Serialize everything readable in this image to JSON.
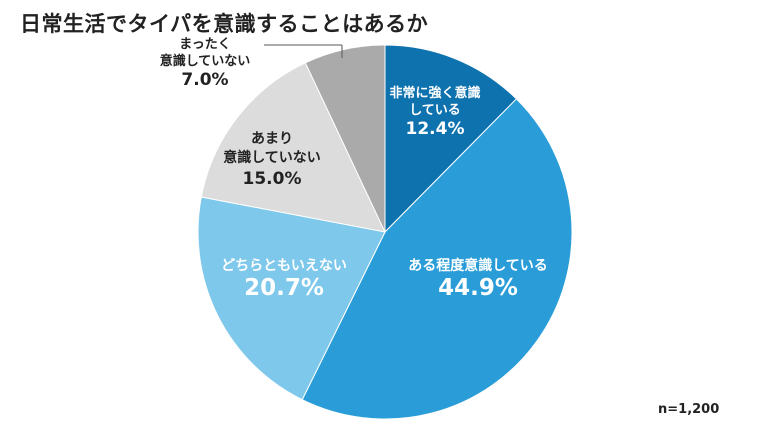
{
  "title": "日常生活でタイパを意識することはあるか",
  "footnote": "n=1,200",
  "chart_data": {
    "type": "pie",
    "title": "日常生活でタイパを意識することはあるか",
    "start": "top",
    "direction": "clockwise",
    "legend": "none",
    "slices": [
      {
        "label_lines": [
          "非常に強く意識",
          "している"
        ],
        "value": 12.4,
        "value_label": "12.4%",
        "color": "#0e72ae",
        "text_color": "#ffffff"
      },
      {
        "label_lines": [
          "ある程度意識している"
        ],
        "value": 44.9,
        "value_label": "44.9%",
        "color": "#2a9dd8",
        "text_color": "#ffffff"
      },
      {
        "label_lines": [
          "どちらともいえない"
        ],
        "value": 20.7,
        "value_label": "20.7%",
        "color": "#7ec8ec",
        "text_color": "#ffffff"
      },
      {
        "label_lines": [
          "あまり",
          "意識していない"
        ],
        "value": 15.0,
        "value_label": "15.0%",
        "color": "#dcdcdc",
        "text_color": "#222222"
      },
      {
        "label_lines": [
          "まったく",
          "意識していない"
        ],
        "value": 7.0,
        "value_label": "7.0%",
        "color": "#aaaaaa",
        "text_color": "#222222"
      }
    ]
  }
}
